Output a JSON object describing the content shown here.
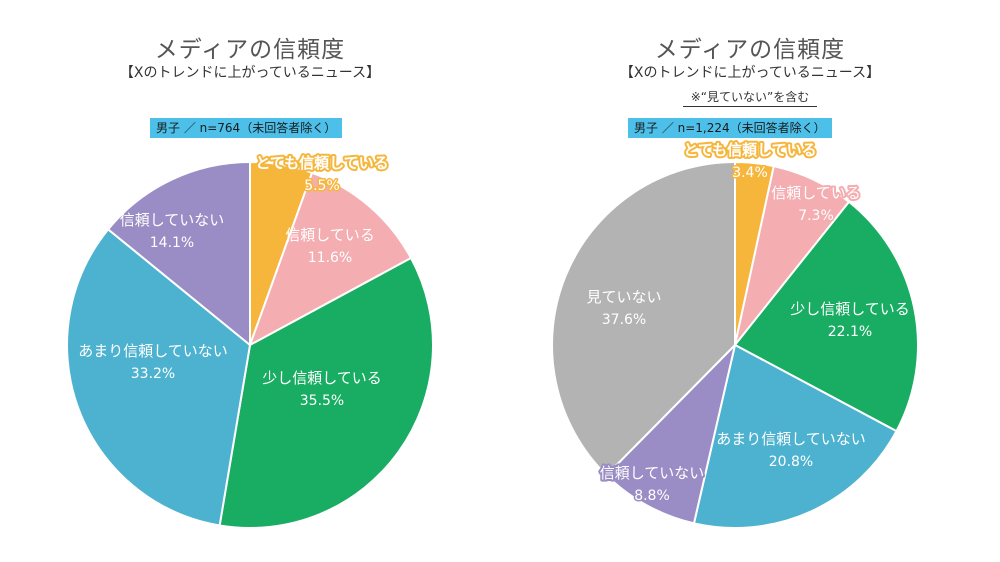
{
  "chart_data": [
    {
      "type": "pie",
      "title": "メディアの信頼度",
      "subtitle": "【Xのトレンドに上がっているニュース】",
      "note": "",
      "sample": "男子 ／ n=764（未回答者除く）",
      "slices": [
        {
          "label": "とても信頼している",
          "value": 5.5,
          "value_text": "5.5%",
          "color": "#f6b63c"
        },
        {
          "label": "信頼している",
          "value": 11.6,
          "value_text": "11.6%",
          "color": "#f4adb1"
        },
        {
          "label": "少し信頼している",
          "value": 35.5,
          "value_text": "35.5%",
          "color": "#18ad62"
        },
        {
          "label": "あまり信頼していない",
          "value": 33.2,
          "value_text": "33.2%",
          "color": "#4cb2cf"
        },
        {
          "label": "信頼していない",
          "value": 14.1,
          "value_text": "14.1%",
          "color": "#9a8cc4"
        }
      ]
    },
    {
      "type": "pie",
      "title": "メディアの信頼度",
      "subtitle": "【Xのトレンドに上がっているニュース】",
      "note": "※“見ていない”を含む",
      "sample": "男子 ／ n=1,224（未回答者除く）",
      "slices": [
        {
          "label": "とても信頼している",
          "value": 3.4,
          "value_text": "3.4%",
          "color": "#f6b63c"
        },
        {
          "label": "信頼している",
          "value": 7.3,
          "value_text": "7.3%",
          "color": "#f4adb1"
        },
        {
          "label": "少し信頼している",
          "value": 22.1,
          "value_text": "22.1%",
          "color": "#18ad62"
        },
        {
          "label": "あまり信頼していない",
          "value": 20.8,
          "value_text": "20.8%",
          "color": "#4cb2cf"
        },
        {
          "label": "信頼していない",
          "value": 8.8,
          "value_text": "8.8%",
          "color": "#9a8cc4"
        },
        {
          "label": "見ていない",
          "value": 37.6,
          "value_text": "37.6%",
          "color": "#b3b3b3"
        }
      ]
    }
  ]
}
